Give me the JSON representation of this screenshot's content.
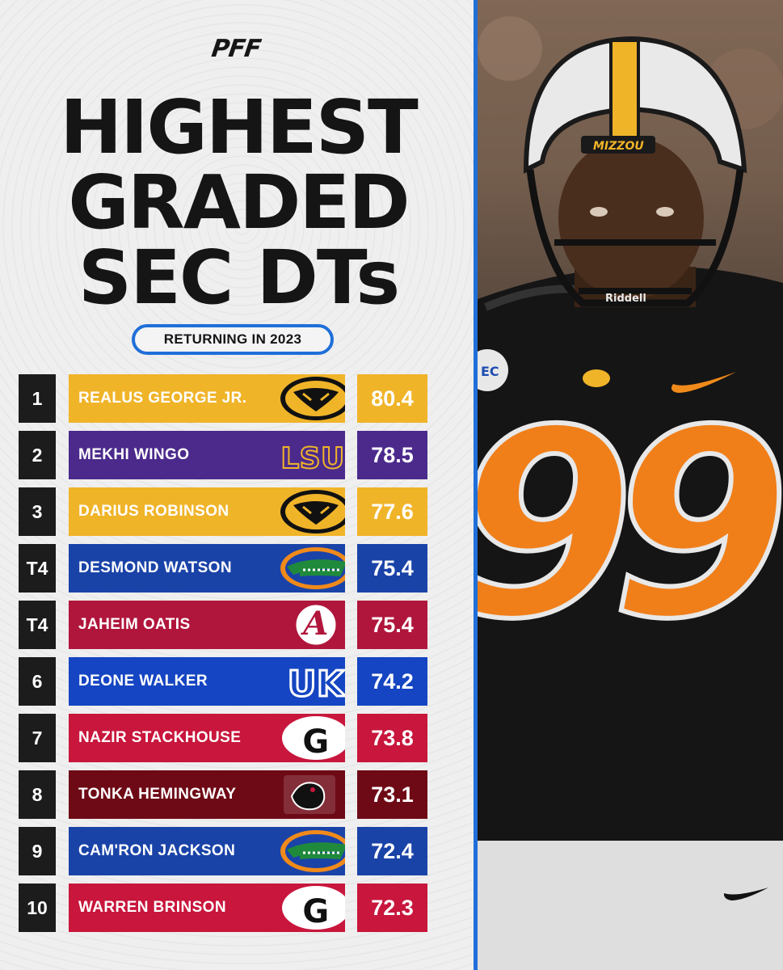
{
  "header": {
    "logo_text": "PFF",
    "title_line1": "HIGHEST",
    "title_line2": "GRADED",
    "title_line3": "SEC DTs",
    "subtitle": "RETURNING IN 2023"
  },
  "colors": {
    "accent_blue": "#1f6fd8",
    "missouri_gold": "#f0b429",
    "lsu_purple": "#4b2a8c",
    "florida_blue": "#1a43a8",
    "alabama_crimson": "#b0163c",
    "kentucky_blue": "#1545c2",
    "georgia_red": "#c8163c",
    "south_carolina_garnet": "#6e0a16"
  },
  "rankings": [
    {
      "rank": "1",
      "name": "REALUS GEORGE JR.",
      "grade": "80.4",
      "team": "missouri",
      "logo_icon": "missouri-tiger-icon"
    },
    {
      "rank": "2",
      "name": "MEKHI WINGO",
      "grade": "78.5",
      "team": "lsu",
      "logo_icon": "lsu-logo-icon",
      "logo_text": "LSU"
    },
    {
      "rank": "3",
      "name": "DARIUS ROBINSON",
      "grade": "77.6",
      "team": "missouri",
      "logo_icon": "missouri-tiger-icon"
    },
    {
      "rank": "T4",
      "name": "DESMOND WATSON",
      "grade": "75.4",
      "team": "florida",
      "logo_icon": "florida-gator-icon"
    },
    {
      "rank": "T4",
      "name": "JAHEIM OATIS",
      "grade": "75.4",
      "team": "alabama",
      "logo_icon": "alabama-a-icon",
      "logo_text": "A"
    },
    {
      "rank": "6",
      "name": "DEONE WALKER",
      "grade": "74.2",
      "team": "kentucky",
      "logo_icon": "kentucky-uk-icon",
      "logo_text": "UK"
    },
    {
      "rank": "7",
      "name": "NAZIR STACKHOUSE",
      "grade": "73.8",
      "team": "georgia",
      "logo_icon": "georgia-g-icon",
      "logo_text": "G"
    },
    {
      "rank": "8",
      "name": "TONKA HEMINGWAY",
      "grade": "73.1",
      "team": "south-carolina",
      "logo_icon": "gamecock-icon"
    },
    {
      "rank": "9",
      "name": "CAM'RON JACKSON",
      "grade": "72.4",
      "team": "florida",
      "logo_icon": "florida-gator-icon"
    },
    {
      "rank": "10",
      "name": "WARREN BRINSON",
      "grade": "72.3",
      "team": "georgia",
      "logo_icon": "georgia-g-icon",
      "logo_text": "G"
    }
  ],
  "photo": {
    "helmet_text": "MIZZOU",
    "jersey_number": "99",
    "facemask_brand": "Riddell"
  }
}
